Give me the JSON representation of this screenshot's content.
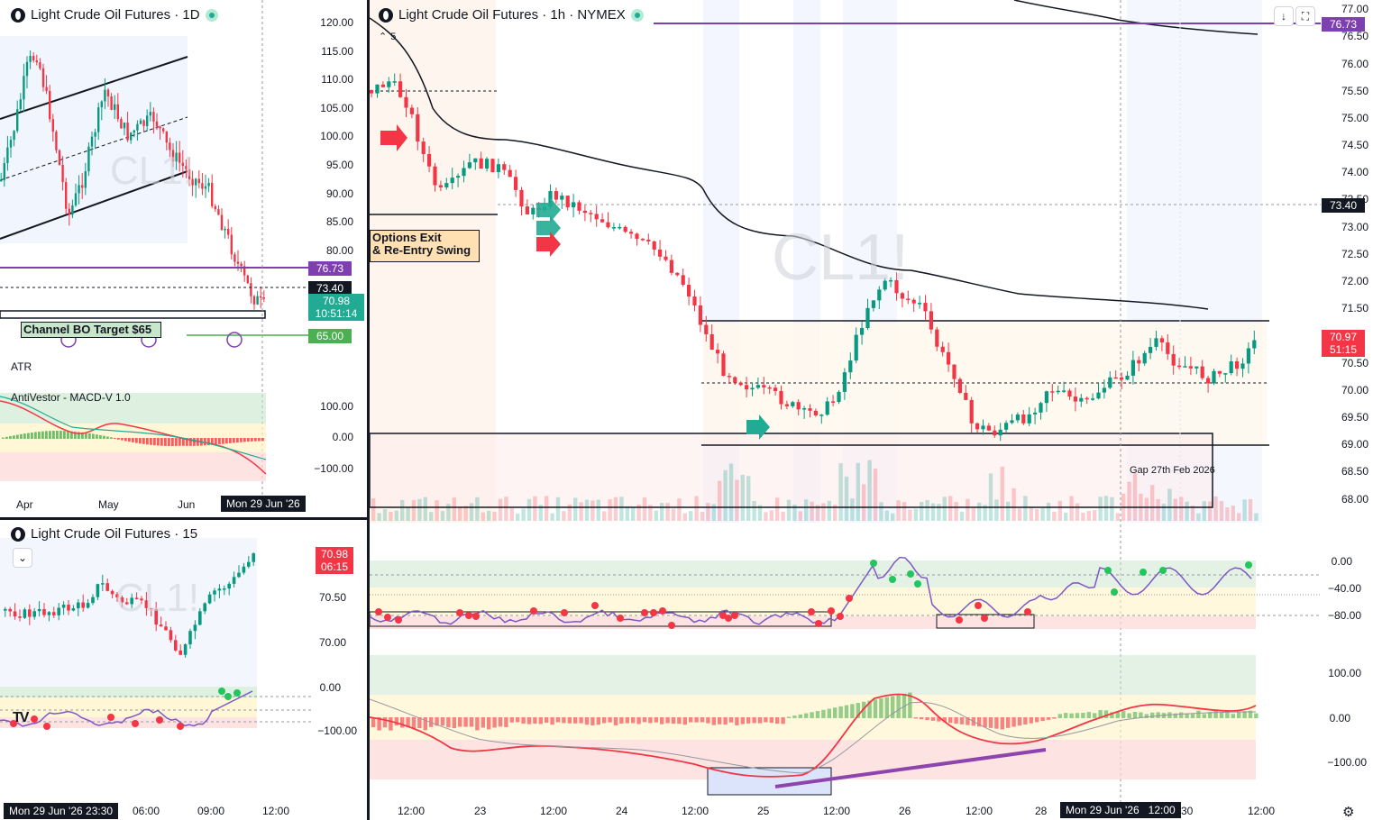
{
  "top_left": {
    "title": "Light Crude Oil Futures · 1D",
    "price_axis": [
      "120.00",
      "115.00",
      "110.00",
      "105.00",
      "100.00",
      "95.00",
      "90.00",
      "85.00",
      "80.00"
    ],
    "tags": {
      "line_purple": "76.73",
      "level_dark": "73.40",
      "last_price": "70.98",
      "countdown": "10:51:14",
      "target": "65.00"
    },
    "channel_label": "Channel BO Target $65",
    "watermark": "CL1!",
    "atr_label": "ATR",
    "macd_label": "AntiVestor - MACD-V 1.0",
    "macd_axis": [
      "100.00",
      "0.00",
      "−100.00"
    ],
    "time_axis": [
      "Apr",
      "May",
      "Jun"
    ],
    "time_highlight": "Mon 29 Jun '26"
  },
  "bottom_left": {
    "title": "Light Crude Oil Futures · 15",
    "price_axis": [
      "70.50",
      "70.00"
    ],
    "last_price": "70.98",
    "countdown": "06:15",
    "watermark": "CL1!",
    "osc_axis": [
      "0.00",
      "−100.00"
    ],
    "time_highlight": "Mon 29 Jun '26  23:30",
    "time_axis": [
      "06:00",
      "09:00",
      "12:00"
    ],
    "logo": "TV"
  },
  "main": {
    "title": "Light Crude Oil Futures · 1h · NYMEX",
    "indicator_count": "5",
    "price_axis": [
      "77.00",
      "76.50",
      "76.00",
      "75.50",
      "75.00",
      "74.50",
      "74.00",
      "73.50",
      "73.00",
      "72.50",
      "72.00",
      "71.50",
      "70.50",
      "70.00",
      "69.50",
      "69.00",
      "68.50",
      "68.00"
    ],
    "tags": {
      "line_purple": "76.73",
      "level_dark": "73.40",
      "last_price": "70.97",
      "countdown": "51:15"
    },
    "watermark": "CL1!",
    "note_options": "Options Exit\n& Re-Entry Swing",
    "note_gap": "Gap 27th Feb 2026",
    "osc1_axis": [
      "0.00",
      "−40.00",
      "−80.00"
    ],
    "osc2_axis": [
      "100.00",
      "0.00",
      "−100.00"
    ],
    "time_axis": [
      "12:00",
      "23",
      "12:00",
      "24",
      "12:00",
      "25",
      "12:00",
      "26",
      "12:00",
      "28",
      "30",
      "12:00"
    ],
    "time_highlight": "Mon 29 Jun '26   12:00"
  },
  "colors": {
    "up": "#089981",
    "down": "#f23645",
    "purple": "#7e3fb0",
    "green_tag": "#22ab94",
    "red_tag": "#f23645",
    "dark_tag": "#131722"
  }
}
